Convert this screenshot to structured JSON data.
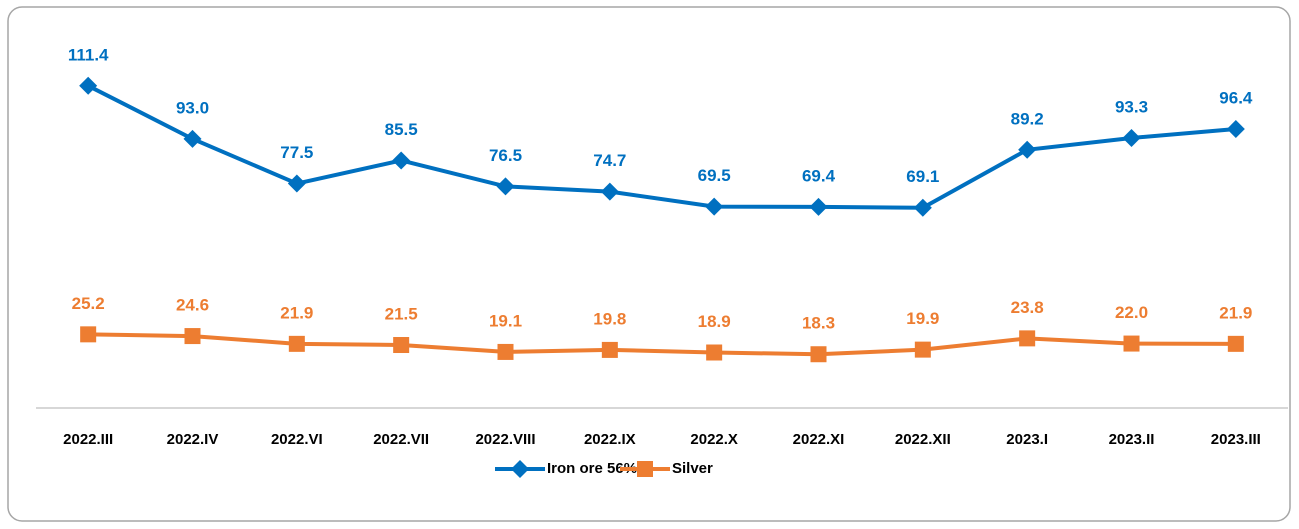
{
  "chart_data": {
    "type": "line",
    "categories": [
      "2022.III",
      "2022.IV",
      "2022.VI",
      "2022.VII",
      "2022.VIII",
      "2022.IX",
      "2022.X",
      "2022.XI",
      "2022.XII",
      "2023.I",
      "2023.II",
      "2023.III"
    ],
    "series": [
      {
        "name": "Iron ore 56%",
        "color": "#0070c0",
        "marker": "diamond",
        "values": [
          111.4,
          93.0,
          77.5,
          85.5,
          76.5,
          74.7,
          69.5,
          69.4,
          69.1,
          89.2,
          93.3,
          96.4
        ],
        "value_labels": [
          "111.4",
          "93.0",
          "77.5",
          "85.5",
          "76.5",
          "74.7",
          "69.5",
          "69.4",
          "69.1",
          "89.2",
          "93.3",
          "96.4"
        ]
      },
      {
        "name": "Silver",
        "color": "#ed7d31",
        "marker": "square",
        "values": [
          25.2,
          24.6,
          21.9,
          21.5,
          19.1,
          19.8,
          18.9,
          18.3,
          19.9,
          23.8,
          22.0,
          21.9
        ],
        "value_labels": [
          "25.2",
          "24.6",
          "21.9",
          "21.5",
          "19.1",
          "19.8",
          "18.9",
          "18.3",
          "19.9",
          "23.8",
          "22.0",
          "21.9"
        ]
      }
    ],
    "ylim": [
      0,
      120
    ],
    "grid": false,
    "legend": "bottom"
  }
}
